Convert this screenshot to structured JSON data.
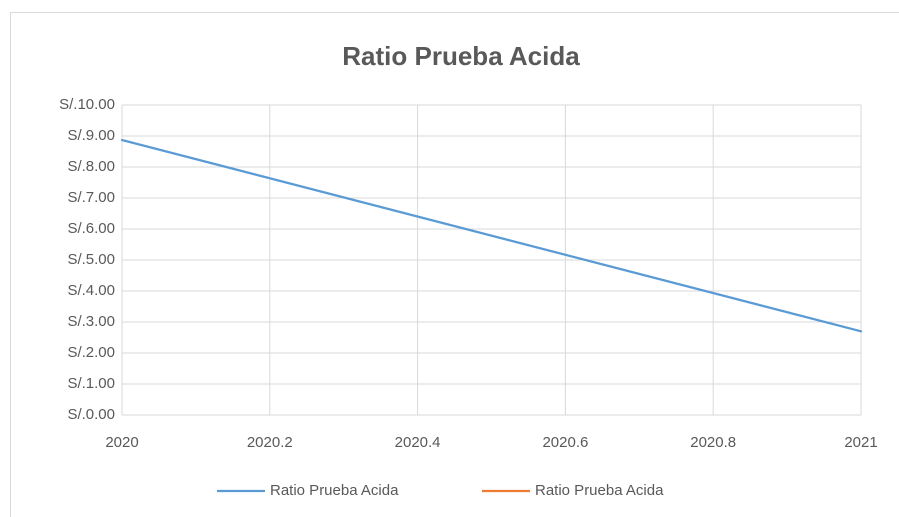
{
  "chart_data": {
    "type": "line",
    "title": "Ratio Prueba Acida",
    "x": [
      2020,
      2021
    ],
    "series": [
      {
        "name": "Ratio Prueba Acida",
        "color": "#5b9bd5",
        "values": [
          8.87,
          2.7
        ]
      },
      {
        "name": "Ratio Prueba Acida",
        "color": "#ed7d31",
        "values": [
          null,
          null
        ]
      }
    ],
    "xlim": [
      2020,
      2021
    ],
    "xticks": [
      2020,
      2020.2,
      2020.4,
      2020.6,
      2020.8,
      2021
    ],
    "ylim": [
      0,
      10
    ],
    "yticks": [
      {
        "value": 0,
        "label": "S/.0.00"
      },
      {
        "value": 1,
        "label": "S/.1.00"
      },
      {
        "value": 2,
        "label": "S/.2.00"
      },
      {
        "value": 3,
        "label": "S/.3.00"
      },
      {
        "value": 4,
        "label": "S/.4.00"
      },
      {
        "value": 5,
        "label": "S/.5.00"
      },
      {
        "value": 6,
        "label": "S/.6.00"
      },
      {
        "value": 7,
        "label": "S/.7.00"
      },
      {
        "value": 8,
        "label": "S/.8.00"
      },
      {
        "value": 9,
        "label": "S/.9.00"
      },
      {
        "value": 10,
        "label": "S/.10.00"
      }
    ],
    "grid": true,
    "legend": "bottom"
  }
}
